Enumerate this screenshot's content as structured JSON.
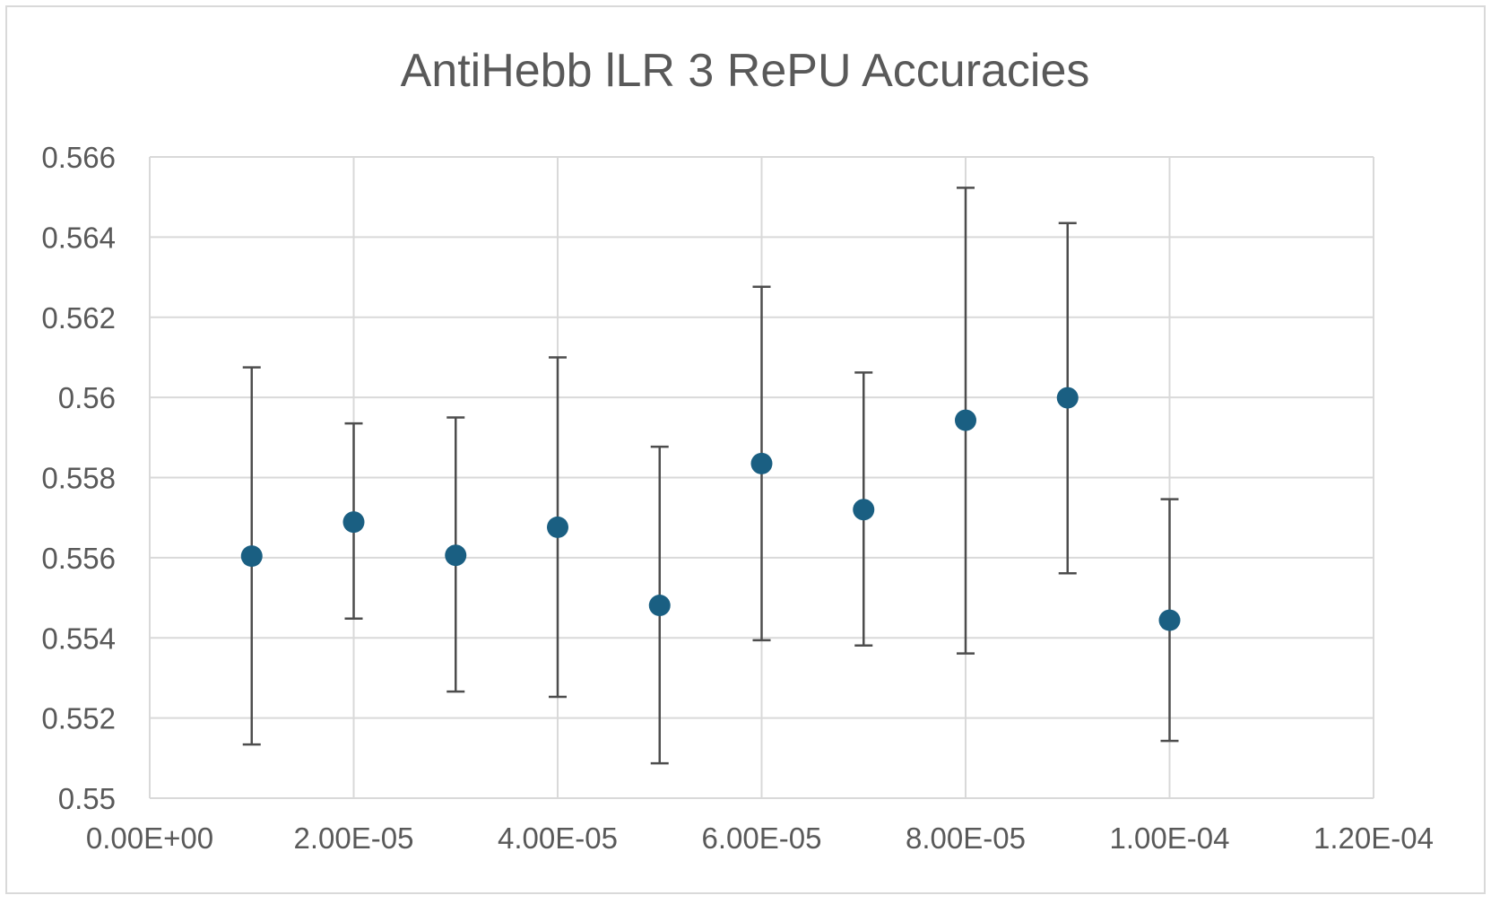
{
  "chart_data": {
    "type": "scatter",
    "title": "AntiHebb lLR 3 RePU Accuracies",
    "xlabel": "",
    "ylabel": "",
    "xlim": [
      0,
      0.00012
    ],
    "ylim": [
      0.55,
      0.566
    ],
    "x_ticks": [
      0,
      2e-05,
      4e-05,
      6e-05,
      8e-05,
      0.0001,
      0.00012
    ],
    "x_tick_labels": [
      "0.00E+00",
      "2.00E-05",
      "4.00E-05",
      "6.00E-05",
      "8.00E-05",
      "1.00E-04",
      "1.20E-04"
    ],
    "y_ticks": [
      0.55,
      0.552,
      0.554,
      0.556,
      0.558,
      0.56,
      0.562,
      0.564,
      0.566
    ],
    "y_tick_labels": [
      "0.55",
      "0.552",
      "0.554",
      "0.556",
      "0.558",
      "0.56",
      "0.562",
      "0.564",
      "0.566"
    ],
    "grid": true,
    "legend": "none",
    "marker_color": "#1a5f82",
    "errorbar_color": "#4d4d4d",
    "series": [
      {
        "x": [
          1e-05,
          2e-05,
          3e-05,
          4e-05,
          5e-05,
          6e-05,
          7e-05,
          8e-05,
          9e-05,
          0.0001
        ],
        "y": [
          0.55604,
          0.55689,
          0.55606,
          0.55676,
          0.55481,
          0.55835,
          0.5572,
          0.55943,
          0.55999,
          0.55444
        ],
        "y_err_high": [
          0.56075,
          0.55935,
          0.5595,
          0.561,
          0.55877,
          0.56276,
          0.56062,
          0.56523,
          0.56435,
          0.55746
        ],
        "y_err_low": [
          0.55134,
          0.55448,
          0.55266,
          0.55253,
          0.55087,
          0.55394,
          0.55381,
          0.55361,
          0.55561,
          0.55143
        ]
      }
    ]
  }
}
